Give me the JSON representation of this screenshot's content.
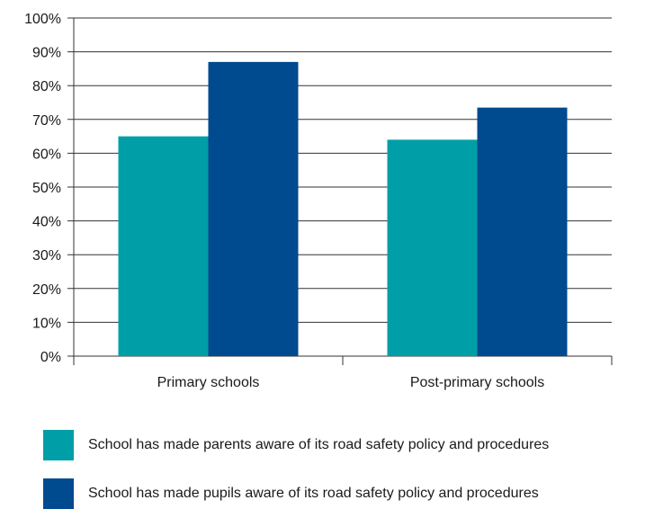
{
  "chart_data": {
    "type": "bar",
    "title": "",
    "xlabel": "",
    "ylabel": "",
    "categories": [
      "Primary schools",
      "Post-primary schools"
    ],
    "series": [
      {
        "name": "School has made parents aware of its road safety policy and procedures",
        "values": [
          65,
          64
        ],
        "color": "#009fa8"
      },
      {
        "name": "School has made pupils aware of its road safety policy and procedures",
        "values": [
          87,
          73.5
        ],
        "color": "#004a8f"
      }
    ],
    "ylim": [
      0,
      100
    ],
    "yticks": [
      0,
      10,
      20,
      30,
      40,
      50,
      60,
      70,
      80,
      90,
      100
    ],
    "ytick_labels": [
      "0%",
      "10%",
      "20%",
      "30%",
      "40%",
      "50%",
      "60%",
      "70%",
      "80%",
      "90%",
      "100%"
    ],
    "grid": true,
    "legend_position": "bottom"
  },
  "colors": {
    "grid": "#333333",
    "axis": "#333333"
  }
}
